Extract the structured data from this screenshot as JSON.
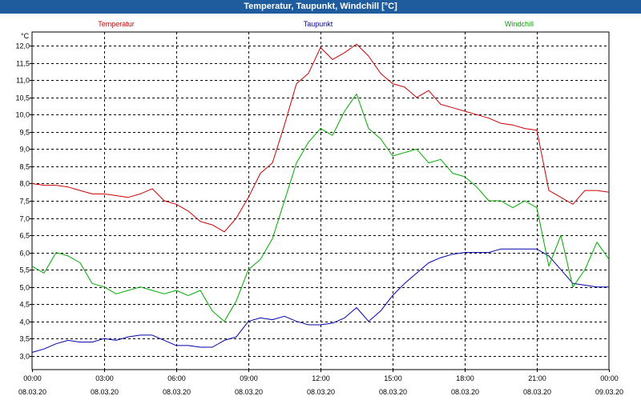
{
  "window": {
    "title": "Temperatur, Taupunkt, Windchill [°C]"
  },
  "colors": {
    "title_bar": "#1f5c9e",
    "temperatur": "#cc0000",
    "taupunkt": "#0000aa",
    "windchill": "#00aa00"
  },
  "chart_data": {
    "type": "line",
    "title": "Temperatur, Taupunkt, Windchill [°C]",
    "ylabel": "°C",
    "xlabel": "",
    "ylim": [
      2.6,
      12.4
    ],
    "xlim": [
      0,
      24
    ],
    "grid": true,
    "legend_position": "top",
    "y_ticks": [
      "3,0",
      "3,5",
      "4,0",
      "4,5",
      "5,0",
      "5,5",
      "6,0",
      "6,5",
      "7,0",
      "7,5",
      "8,0",
      "8,5",
      "9,0",
      "9,5",
      "10,0",
      "10,5",
      "11,0",
      "11,5",
      "12,0"
    ],
    "x_ticks": [
      {
        "time": "00:00",
        "date": "08.03.20"
      },
      {
        "time": "03:00",
        "date": "08.03.20"
      },
      {
        "time": "06:00",
        "date": "08.03.20"
      },
      {
        "time": "09:00",
        "date": "08.03.20"
      },
      {
        "time": "12:00",
        "date": "08.03.20"
      },
      {
        "time": "15:00",
        "date": "08.03.20"
      },
      {
        "time": "18:00",
        "date": "08.03.20"
      },
      {
        "time": "21:00",
        "date": "08.03.20"
      },
      {
        "time": "00:00",
        "date": "09.03.20"
      }
    ],
    "x_unit": "hours since 08.03.20 00:00",
    "series": [
      {
        "name": "Temperatur",
        "color": "#cc0000",
        "x": [
          0,
          0.5,
          1,
          1.5,
          2,
          2.5,
          3,
          3.5,
          4,
          4.5,
          5,
          5.5,
          6,
          6.5,
          7,
          7.5,
          8,
          8.5,
          9,
          9.5,
          10,
          10.5,
          11,
          11.5,
          12,
          12.5,
          13,
          13.5,
          14,
          14.5,
          15,
          15.5,
          16,
          16.5,
          17,
          17.5,
          18,
          18.5,
          19,
          19.5,
          20,
          20.5,
          21,
          21.5,
          22,
          22.5,
          23,
          23.5,
          24
        ],
        "values": [
          8.0,
          7.95,
          7.95,
          7.9,
          7.8,
          7.7,
          7.7,
          7.65,
          7.6,
          7.7,
          7.85,
          7.5,
          7.4,
          7.2,
          6.9,
          6.8,
          6.6,
          7.0,
          7.6,
          8.3,
          8.6,
          9.7,
          10.9,
          11.2,
          11.95,
          11.6,
          11.8,
          12.05,
          11.7,
          11.2,
          10.9,
          10.8,
          10.5,
          10.7,
          10.3,
          10.2,
          10.1,
          10.0,
          9.9,
          9.75,
          9.7,
          9.6,
          9.55,
          7.8,
          7.6,
          7.4,
          7.8,
          7.8,
          7.75
        ]
      },
      {
        "name": "Taupunkt",
        "color": "#0000aa",
        "x": [
          0,
          0.5,
          1,
          1.5,
          2,
          2.5,
          3,
          3.5,
          4,
          4.5,
          5,
          5.5,
          6,
          6.5,
          7,
          7.5,
          8,
          8.5,
          9,
          9.5,
          10,
          10.5,
          11,
          11.5,
          12,
          12.5,
          13,
          13.5,
          14,
          14.5,
          15,
          15.5,
          16,
          16.5,
          17,
          17.5,
          18,
          18.5,
          19,
          19.5,
          20,
          20.5,
          21,
          21.5,
          22,
          22.5,
          23,
          23.5,
          24
        ],
        "values": [
          3.1,
          3.2,
          3.35,
          3.45,
          3.4,
          3.4,
          3.5,
          3.45,
          3.55,
          3.6,
          3.6,
          3.45,
          3.3,
          3.3,
          3.25,
          3.25,
          3.45,
          3.55,
          4.0,
          4.1,
          4.05,
          4.15,
          4.0,
          3.9,
          3.9,
          3.95,
          4.1,
          4.4,
          4.0,
          4.3,
          4.75,
          5.1,
          5.4,
          5.7,
          5.85,
          5.95,
          6.0,
          6.0,
          6.0,
          6.1,
          6.1,
          6.1,
          6.1,
          5.9,
          5.5,
          5.1,
          5.05,
          5.0,
          5.0
        ]
      },
      {
        "name": "Windchill",
        "color": "#00aa00",
        "x": [
          0,
          0.5,
          1,
          1.5,
          2,
          2.5,
          3,
          3.5,
          4,
          4.5,
          5,
          5.5,
          6,
          6.5,
          7,
          7.5,
          8,
          8.5,
          9,
          9.5,
          10,
          10.5,
          11,
          11.5,
          12,
          12.5,
          13,
          13.5,
          14,
          14.5,
          15,
          15.5,
          16,
          16.5,
          17,
          17.5,
          18,
          18.5,
          19,
          19.5,
          20,
          20.5,
          21,
          21.5,
          22,
          22.5,
          23,
          23.5,
          24
        ],
        "values": [
          5.6,
          5.4,
          6.0,
          5.9,
          5.7,
          5.1,
          5.0,
          4.8,
          4.9,
          5.0,
          4.9,
          4.8,
          4.9,
          4.75,
          4.9,
          4.3,
          4.0,
          4.6,
          5.5,
          5.8,
          6.4,
          7.5,
          8.6,
          9.2,
          9.6,
          9.4,
          10.1,
          10.6,
          9.6,
          9.3,
          8.8,
          8.9,
          9.0,
          8.6,
          8.7,
          8.3,
          8.2,
          7.9,
          7.5,
          7.5,
          7.3,
          7.5,
          7.3,
          5.6,
          6.5,
          5.0,
          5.5,
          6.3,
          5.8
        ]
      }
    ]
  }
}
